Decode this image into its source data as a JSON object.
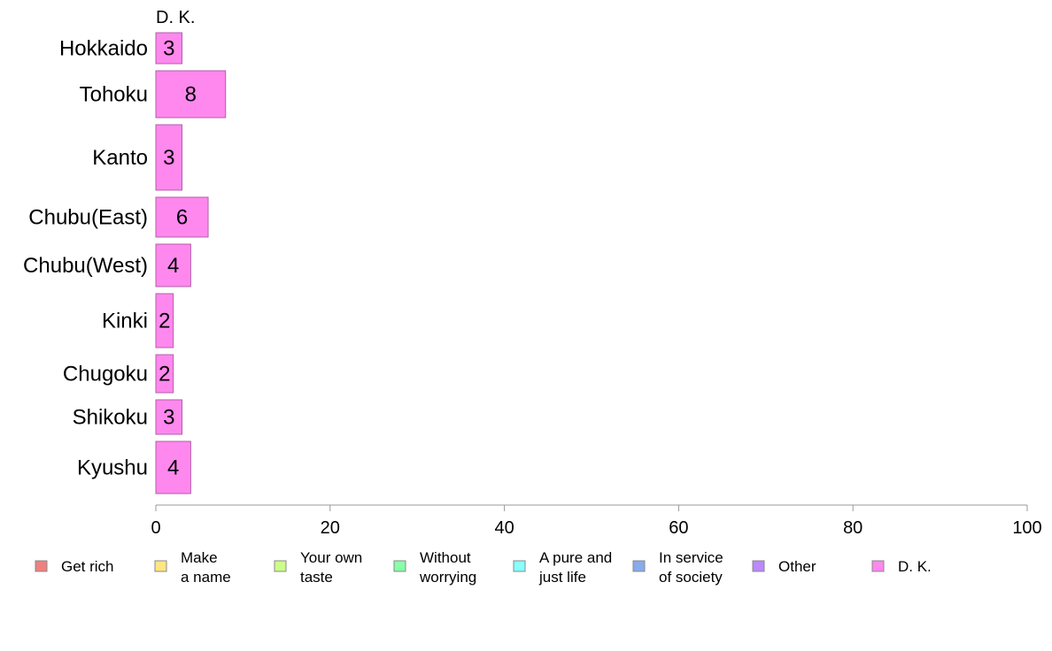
{
  "chart_data": {
    "type": "bar",
    "orientation": "horizontal",
    "stacked": true,
    "panel_title": "D. K.",
    "categories": [
      "Hokkaido",
      "Tohoku",
      "Kanto",
      "Chubu(East)",
      "Chubu(West)",
      "Kinki",
      "Chugoku",
      "Shikoku",
      "Kyushu"
    ],
    "series": [
      {
        "name": "D. K.",
        "values": [
          3,
          8,
          3,
          6,
          4,
          2,
          2,
          3,
          4
        ],
        "color": "#ff88ee"
      }
    ],
    "xlim": [
      0,
      100
    ],
    "xticks": [
      0,
      20,
      40,
      60,
      80,
      100
    ],
    "grid": false,
    "legend": {
      "position": "bottom",
      "items": [
        {
          "label": "Get rich",
          "color": "#f08080"
        },
        {
          "label": "Make\na name",
          "color": "#ffe680"
        },
        {
          "label": "Your own\ntaste",
          "color": "#ccff88"
        },
        {
          "label": "Without\nworrying",
          "color": "#88ffa8"
        },
        {
          "label": "A pure and\njust life",
          "color": "#88ffff"
        },
        {
          "label": "In service\nof society",
          "color": "#88aaee"
        },
        {
          "label": "Other",
          "color": "#bb88ff"
        },
        {
          "label": "D. K.",
          "color": "#ff88ee"
        }
      ]
    }
  }
}
